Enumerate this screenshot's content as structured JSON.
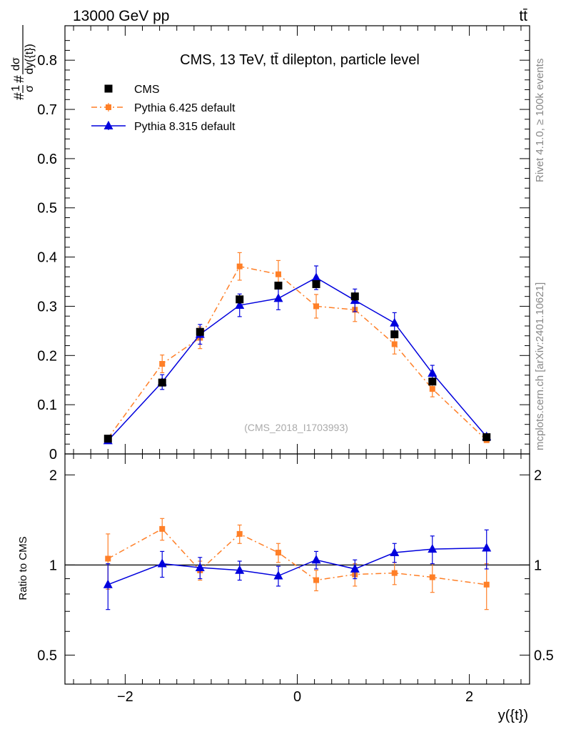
{
  "header": {
    "energy_label": "13000 GeV pp",
    "process_label": "tt̄"
  },
  "side_labels": {
    "rivet": "Rivet 4.1.0, ≥ 100k events",
    "source": "mcplots.cern.ch [arXiv:2401.10621]"
  },
  "chart_data": {
    "type": "scatter",
    "title": "CMS, 13 TeV, tt̄ dilepton, particle level",
    "watermark": "(CMS_2018_I1703993)",
    "xlabel": "y({t})",
    "ylabel": "#frac{1}{σ}#frac{dσ}{dy({t})}",
    "ratio_ylabel": "Ratio to CMS",
    "xlim": [
      -2.7,
      2.7
    ],
    "ylim": [
      0,
      0.87
    ],
    "ratio_ylim": [
      0.4,
      2.35
    ],
    "x_ticks": [
      -2,
      0,
      2
    ],
    "x_tick_labels": [
      "−2",
      "0",
      "2"
    ],
    "y_ticks": [
      0,
      0.1,
      0.2,
      0.3,
      0.4,
      0.5,
      0.6,
      0.7,
      0.8
    ],
    "y_tick_labels": [
      "0",
      "0.1",
      "0.2",
      "0.3",
      "0.4",
      "0.5",
      "0.6",
      "0.7",
      "0.8"
    ],
    "ratio_ticks": [
      0.5,
      1,
      2
    ],
    "ratio_tick_labels": [
      "0.5",
      "1",
      "2"
    ],
    "x": [
      -2.2,
      -1.57,
      -1.13,
      -0.67,
      -0.22,
      0.22,
      0.67,
      1.13,
      1.57,
      2.2
    ],
    "legend_position": "top-left",
    "series": [
      {
        "name": "CMS",
        "color": "#000000",
        "marker": "square",
        "line": "none",
        "values": [
          0.031,
          0.145,
          0.248,
          0.314,
          0.342,
          0.345,
          0.32,
          0.243,
          0.147,
          0.034
        ],
        "errors": [
          0.003,
          0.008,
          0.009,
          0.009,
          0.007,
          0.008,
          0.009,
          0.007,
          0.007,
          0.003
        ]
      },
      {
        "name": "Pythia 6.425 default",
        "color": "#ff7f27",
        "marker": "square-small",
        "line": "dashdot",
        "values": [
          0.032,
          0.183,
          0.236,
          0.381,
          0.365,
          0.3,
          0.293,
          0.223,
          0.132,
          0.028
        ],
        "errors": [
          0.004,
          0.018,
          0.022,
          0.028,
          0.028,
          0.024,
          0.024,
          0.02,
          0.016,
          0.004
        ],
        "ratio": [
          1.05,
          1.32,
          0.96,
          1.27,
          1.1,
          0.89,
          0.93,
          0.94,
          0.91,
          0.86
        ],
        "ratio_errors": [
          0.22,
          0.11,
          0.07,
          0.09,
          0.08,
          0.07,
          0.08,
          0.08,
          0.1,
          0.15
        ]
      },
      {
        "name": "Pythia 8.315 default",
        "color": "#0000dd",
        "marker": "triangle",
        "line": "solid",
        "values": [
          0.027,
          0.146,
          0.243,
          0.302,
          0.316,
          0.358,
          0.312,
          0.266,
          0.164,
          0.035
        ],
        "errors": [
          0.004,
          0.015,
          0.02,
          0.023,
          0.023,
          0.024,
          0.023,
          0.021,
          0.016,
          0.004
        ],
        "ratio": [
          0.86,
          1.01,
          0.98,
          0.96,
          0.92,
          1.04,
          0.97,
          1.1,
          1.13,
          1.14
        ],
        "ratio_errors": [
          0.15,
          0.1,
          0.08,
          0.07,
          0.07,
          0.07,
          0.07,
          0.08,
          0.12,
          0.17
        ]
      }
    ]
  }
}
